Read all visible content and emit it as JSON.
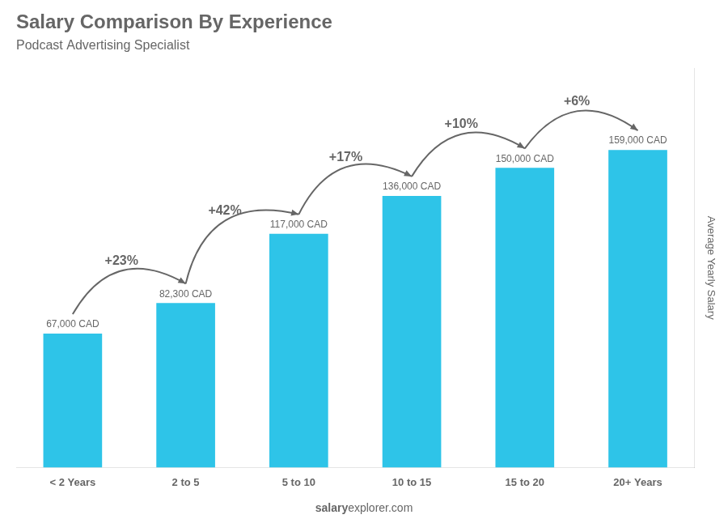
{
  "chart_data": {
    "type": "bar",
    "title": "Salary Comparison By Experience",
    "subtitle": "Podcast Advertising Specialist",
    "categories": [
      "< 2 Years",
      "2 to 5",
      "5 to 10",
      "10 to 15",
      "15 to 20",
      "20+ Years"
    ],
    "values": [
      67000,
      82300,
      117000,
      136000,
      150000,
      159000
    ],
    "value_labels": [
      "67,000 CAD",
      "82,300 CAD",
      "117,000 CAD",
      "136,000 CAD",
      "150,000 CAD",
      "159,000 CAD"
    ],
    "data_labels": true,
    "color": "#2ec4e8",
    "ylabel": "Average Yearly Salary",
    "ylim": [
      0,
      200000
    ],
    "grid": false,
    "tick_labels": "x",
    "annotations": [
      "+23%",
      "+42%",
      "+17%",
      "+10%",
      "+6%"
    ],
    "footer": [
      "salary",
      "explorer.com"
    ]
  }
}
